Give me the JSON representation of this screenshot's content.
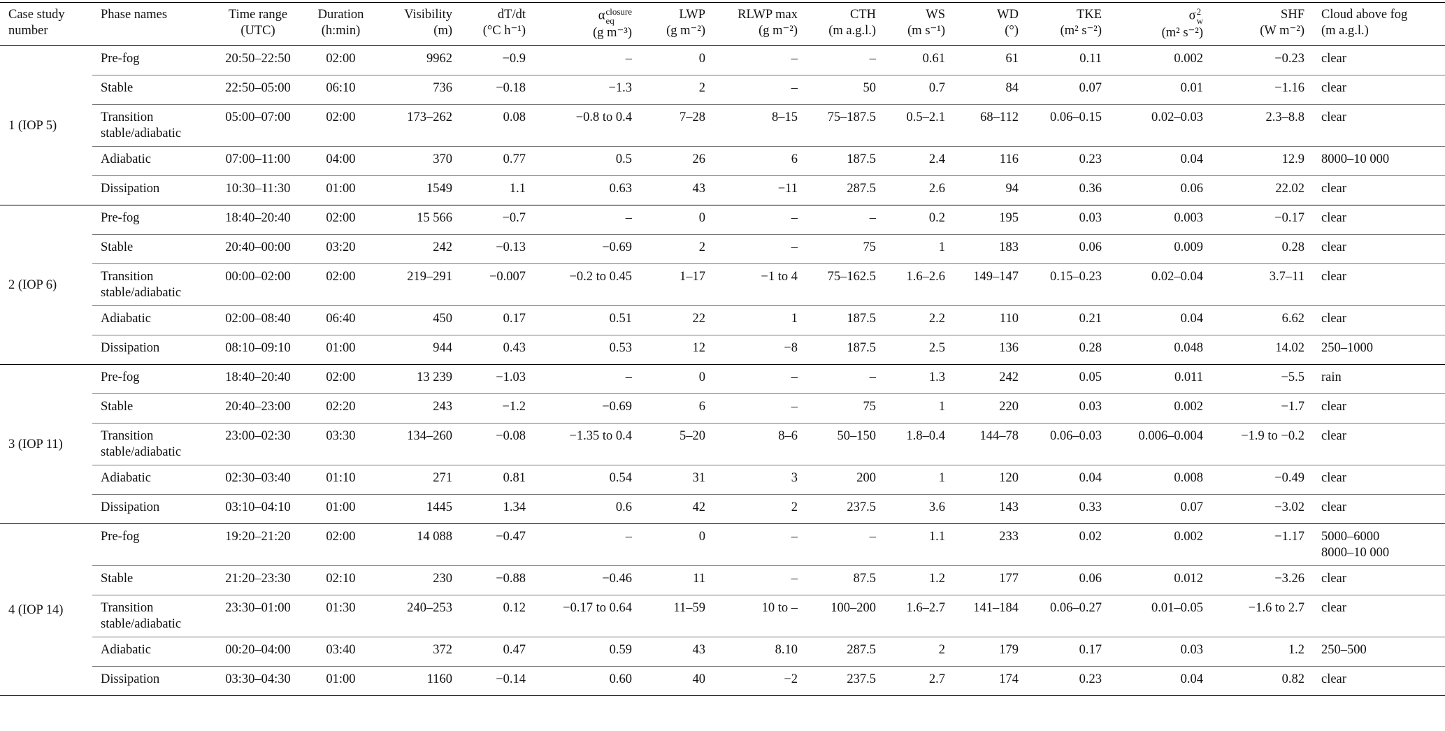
{
  "table": {
    "header": [
      [
        "Case study",
        "number"
      ],
      [
        "Phase names"
      ],
      [
        "Time range",
        "(UTC)"
      ],
      [
        "Duration",
        "(h:min)"
      ],
      [
        "Visibility",
        "(m)"
      ],
      [
        "dT/dt",
        "(°C h⁻¹)"
      ],
      [
        {
          "symbol": "α",
          "sub": "eq",
          "sup": "closure"
        },
        "(g m⁻³)"
      ],
      [
        "LWP",
        "(g m⁻²)"
      ],
      [
        "RLWP max",
        "(g m⁻²)"
      ],
      [
        "CTH",
        "(m a.g.l.)"
      ],
      [
        "WS",
        "(m s⁻¹)"
      ],
      [
        "WD",
        "(°)"
      ],
      [
        "TKE",
        "(m² s⁻²)"
      ],
      [
        {
          "symbol": "σ",
          "sub": "w",
          "sup": "2"
        },
        "(m² s⁻²)"
      ],
      [
        "SHF",
        "(W m⁻²)"
      ],
      [
        "Cloud above fog",
        "(m a.g.l.)"
      ]
    ],
    "groups": [
      {
        "case": "1 (IOP 5)",
        "rows": [
          [
            "Pre-fog",
            "20:50–22:50",
            "02:00",
            "9962",
            "−0.9",
            "–",
            "0",
            "–",
            "–",
            "0.61",
            "61",
            "0.11",
            "0.002",
            "−0.23",
            [
              "clear"
            ]
          ],
          [
            "Stable",
            "22:50–05:00",
            "06:10",
            "736",
            "−0.18",
            "−1.3",
            "2",
            "–",
            "50",
            "0.7",
            "84",
            "0.07",
            "0.01",
            "−1.16",
            [
              "clear"
            ]
          ],
          [
            "Transition stable/adiabatic",
            "05:00–07:00",
            "02:00",
            "173–262",
            "0.08",
            "−0.8 to 0.4",
            "7–28",
            "8–15",
            "75–187.5",
            "0.5–2.1",
            "68–112",
            "0.06–0.15",
            "0.02–0.03",
            "2.3–8.8",
            [
              "clear"
            ]
          ],
          [
            "Adiabatic",
            "07:00–11:00",
            "04:00",
            "370",
            "0.77",
            "0.5",
            "26",
            "6",
            "187.5",
            "2.4",
            "116",
            "0.23",
            "0.04",
            "12.9",
            [
              "8000–10 000"
            ]
          ],
          [
            "Dissipation",
            "10:30–11:30",
            "01:00",
            "1549",
            "1.1",
            "0.63",
            "43",
            "−11",
            "287.5",
            "2.6",
            "94",
            "0.36",
            "0.06",
            "22.02",
            [
              "clear"
            ]
          ]
        ]
      },
      {
        "case": "2 (IOP 6)",
        "rows": [
          [
            "Pre-fog",
            "18:40–20:40",
            "02:00",
            "15 566",
            "−0.7",
            "–",
            "0",
            "–",
            "–",
            "0.2",
            "195",
            "0.03",
            "0.003",
            "−0.17",
            [
              "clear"
            ]
          ],
          [
            "Stable",
            "20:40–00:00",
            "03:20",
            "242",
            "−0.13",
            "−0.69",
            "2",
            "–",
            "75",
            "1",
            "183",
            "0.06",
            "0.009",
            "0.28",
            [
              "clear"
            ]
          ],
          [
            "Transition stable/adiabatic",
            "00:00–02:00",
            "02:00",
            "219–291",
            "−0.007",
            "−0.2 to 0.45",
            "1–17",
            "−1 to 4",
            "75–162.5",
            "1.6–2.6",
            "149–147",
            "0.15–0.23",
            "0.02–0.04",
            "3.7–11",
            [
              "clear"
            ]
          ],
          [
            "Adiabatic",
            "02:00–08:40",
            "06:40",
            "450",
            "0.17",
            "0.51",
            "22",
            "1",
            "187.5",
            "2.2",
            "110",
            "0.21",
            "0.04",
            "6.62",
            [
              "clear"
            ]
          ],
          [
            "Dissipation",
            "08:10–09:10",
            "01:00",
            "944",
            "0.43",
            "0.53",
            "12",
            "−8",
            "187.5",
            "2.5",
            "136",
            "0.28",
            "0.048",
            "14.02",
            [
              "250–1000"
            ]
          ]
        ]
      },
      {
        "case": "3 (IOP 11)",
        "rows": [
          [
            "Pre-fog",
            "18:40–20:40",
            "02:00",
            "13 239",
            "−1.03",
            "–",
            "0",
            "–",
            "–",
            "1.3",
            "242",
            "0.05",
            "0.011",
            "−5.5",
            [
              "rain"
            ]
          ],
          [
            "Stable",
            "20:40–23:00",
            "02:20",
            "243",
            "−1.2",
            "−0.69",
            "6",
            "–",
            "75",
            "1",
            "220",
            "0.03",
            "0.002",
            "−1.7",
            [
              "clear"
            ]
          ],
          [
            "Transition stable/adiabatic",
            "23:00–02:30",
            "03:30",
            "134–260",
            "−0.08",
            "−1.35 to 0.4",
            "5–20",
            "8–6",
            "50–150",
            "1.8–0.4",
            "144–78",
            "0.06–0.03",
            "0.006–0.004",
            "−1.9 to −0.2",
            [
              "clear"
            ]
          ],
          [
            "Adiabatic",
            "02:30–03:40",
            "01:10",
            "271",
            "0.81",
            "0.54",
            "31",
            "3",
            "200",
            "1",
            "120",
            "0.04",
            "0.008",
            "−0.49",
            [
              "clear"
            ]
          ],
          [
            "Dissipation",
            "03:10–04:10",
            "01:00",
            "1445",
            "1.34",
            "0.6",
            "42",
            "2",
            "237.5",
            "3.6",
            "143",
            "0.33",
            "0.07",
            "−3.02",
            [
              "clear"
            ]
          ]
        ]
      },
      {
        "case": "4 (IOP 14)",
        "rows": [
          [
            "Pre-fog",
            "19:20–21:20",
            "02:00",
            "14 088",
            "−0.47",
            "–",
            "0",
            "–",
            "–",
            "1.1",
            "233",
            "0.02",
            "0.002",
            "−1.17",
            [
              "5000–6000",
              "8000–10 000"
            ]
          ],
          [
            "Stable",
            "21:20–23:30",
            "02:10",
            "230",
            "−0.88",
            "−0.46",
            "11",
            "–",
            "87.5",
            "1.2",
            "177",
            "0.06",
            "0.012",
            "−3.26",
            [
              "clear"
            ]
          ],
          [
            "Transition stable/adiabatic",
            "23:30–01:00",
            "01:30",
            "240–253",
            "0.12",
            "−0.17 to 0.64",
            "11–59",
            "10 to –",
            "100–200",
            "1.6–2.7",
            "141–184",
            "0.06–0.27",
            "0.01–0.05",
            "−1.6 to 2.7",
            [
              "clear"
            ]
          ],
          [
            "Adiabatic",
            "00:20–04:00",
            "03:40",
            "372",
            "0.47",
            "0.59",
            "43",
            "8.10",
            "287.5",
            "2",
            "179",
            "0.17",
            "0.03",
            "1.2",
            [
              "250–500"
            ]
          ],
          [
            "Dissipation",
            "03:30–04:30",
            "01:00",
            "1160",
            "−0.14",
            "0.60",
            "40",
            "−2",
            "237.5",
            "2.7",
            "174",
            "0.23",
            "0.04",
            "0.82",
            [
              "clear"
            ]
          ]
        ]
      }
    ]
  }
}
